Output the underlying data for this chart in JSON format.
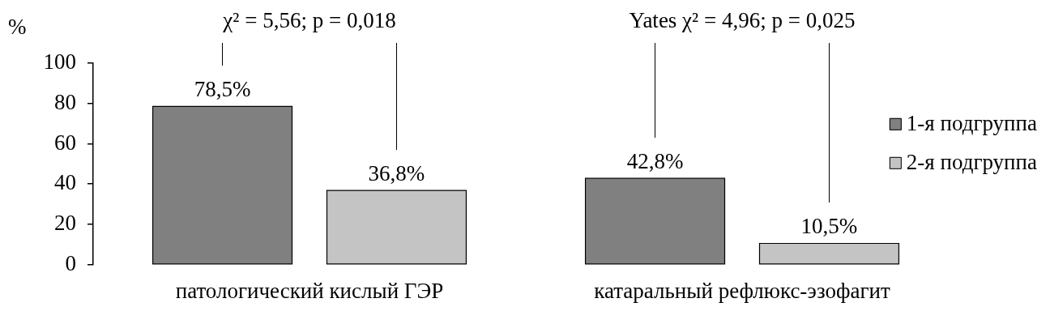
{
  "chart_data": {
    "type": "bar",
    "ylabel": "%",
    "categories": [
      "патологический кислый ГЭР",
      "катаральный рефлюкс-эзофагит"
    ],
    "series": [
      {
        "name": "1-я подгруппа",
        "color": "#808080",
        "values": [
          78.5,
          42.8
        ],
        "value_labels": [
          "78,5%",
          "42,8%"
        ]
      },
      {
        "name": "2-я подгруппа",
        "color": "#c4c4c4",
        "values": [
          36.8,
          10.5
        ],
        "value_labels": [
          "36,8%",
          "10,5%"
        ]
      }
    ],
    "ylim": [
      0,
      100
    ],
    "yticks": [
      0,
      20,
      40,
      60,
      80,
      100
    ],
    "grid": false,
    "legend": "right",
    "annotations": [
      "χ² = 5,56; p = 0,018",
      "Yates χ² = 4,96; p = 0,025"
    ]
  }
}
